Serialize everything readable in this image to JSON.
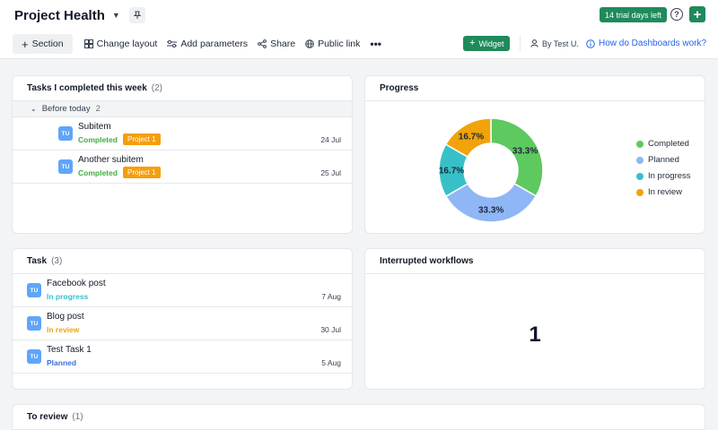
{
  "header": {
    "title": "Project Health",
    "trial_badge": "14 trial days left",
    "help_label": "?",
    "toolbar": {
      "section": "Section",
      "change_layout": "Change layout",
      "add_parameters": "Add parameters",
      "share": "Share",
      "public_link": "Public link",
      "more": "•••"
    },
    "widget_button": "Widget",
    "by_user": "By Test U.",
    "how_link": "How do Dashboards work?"
  },
  "colors": {
    "accent_green": "#1f8a5b",
    "completed": "#5ec95e",
    "planned": "#8fb6f5",
    "in_progress": "#38c0c8",
    "in_review": "#f0a30a",
    "tag": "#f59e0b"
  },
  "tasks_completed": {
    "title": "Tasks I completed this week",
    "count": "(2)",
    "group": {
      "label": "Before today",
      "count": "2"
    },
    "items": [
      {
        "avatar": "TU",
        "name": "Subitem",
        "status": "Completed",
        "tag": "Project 1",
        "date": "24 Jul"
      },
      {
        "avatar": "TU",
        "name": "Another subitem",
        "status": "Completed",
        "tag": "Project 1",
        "date": "25 Jul"
      }
    ]
  },
  "progress": {
    "title": "Progress",
    "chart_data": {
      "type": "pie",
      "variant": "donut",
      "slices": [
        {
          "label": "Completed",
          "value": 33.3,
          "display": "33.3%",
          "color": "#5ec95e"
        },
        {
          "label": "Planned",
          "value": 33.3,
          "display": "33.3%",
          "color": "#8fb6f5"
        },
        {
          "label": "In progress",
          "value": 16.7,
          "display": "16.7%",
          "color": "#38c0c8"
        },
        {
          "label": "In review",
          "value": 16.7,
          "display": "16.7%",
          "color": "#f0a30a"
        }
      ],
      "legend_position": "right"
    }
  },
  "task_list": {
    "title": "Task",
    "count": "(3)",
    "items": [
      {
        "avatar": "TU",
        "name": "Facebook post",
        "status": "In progress",
        "status_color": "#38c0c8",
        "date": "7 Aug"
      },
      {
        "avatar": "TU",
        "name": "Blog post",
        "status": "In review",
        "status_color": "#f0a30a",
        "date": "30 Jul"
      },
      {
        "avatar": "TU",
        "name": "Test Task 1",
        "status": "Planned",
        "status_color": "#3b6fd4",
        "date": "5 Aug"
      }
    ]
  },
  "interrupted": {
    "title": "Interrupted workflows",
    "value": "1"
  },
  "to_review": {
    "title": "To review",
    "count": "(1)"
  }
}
